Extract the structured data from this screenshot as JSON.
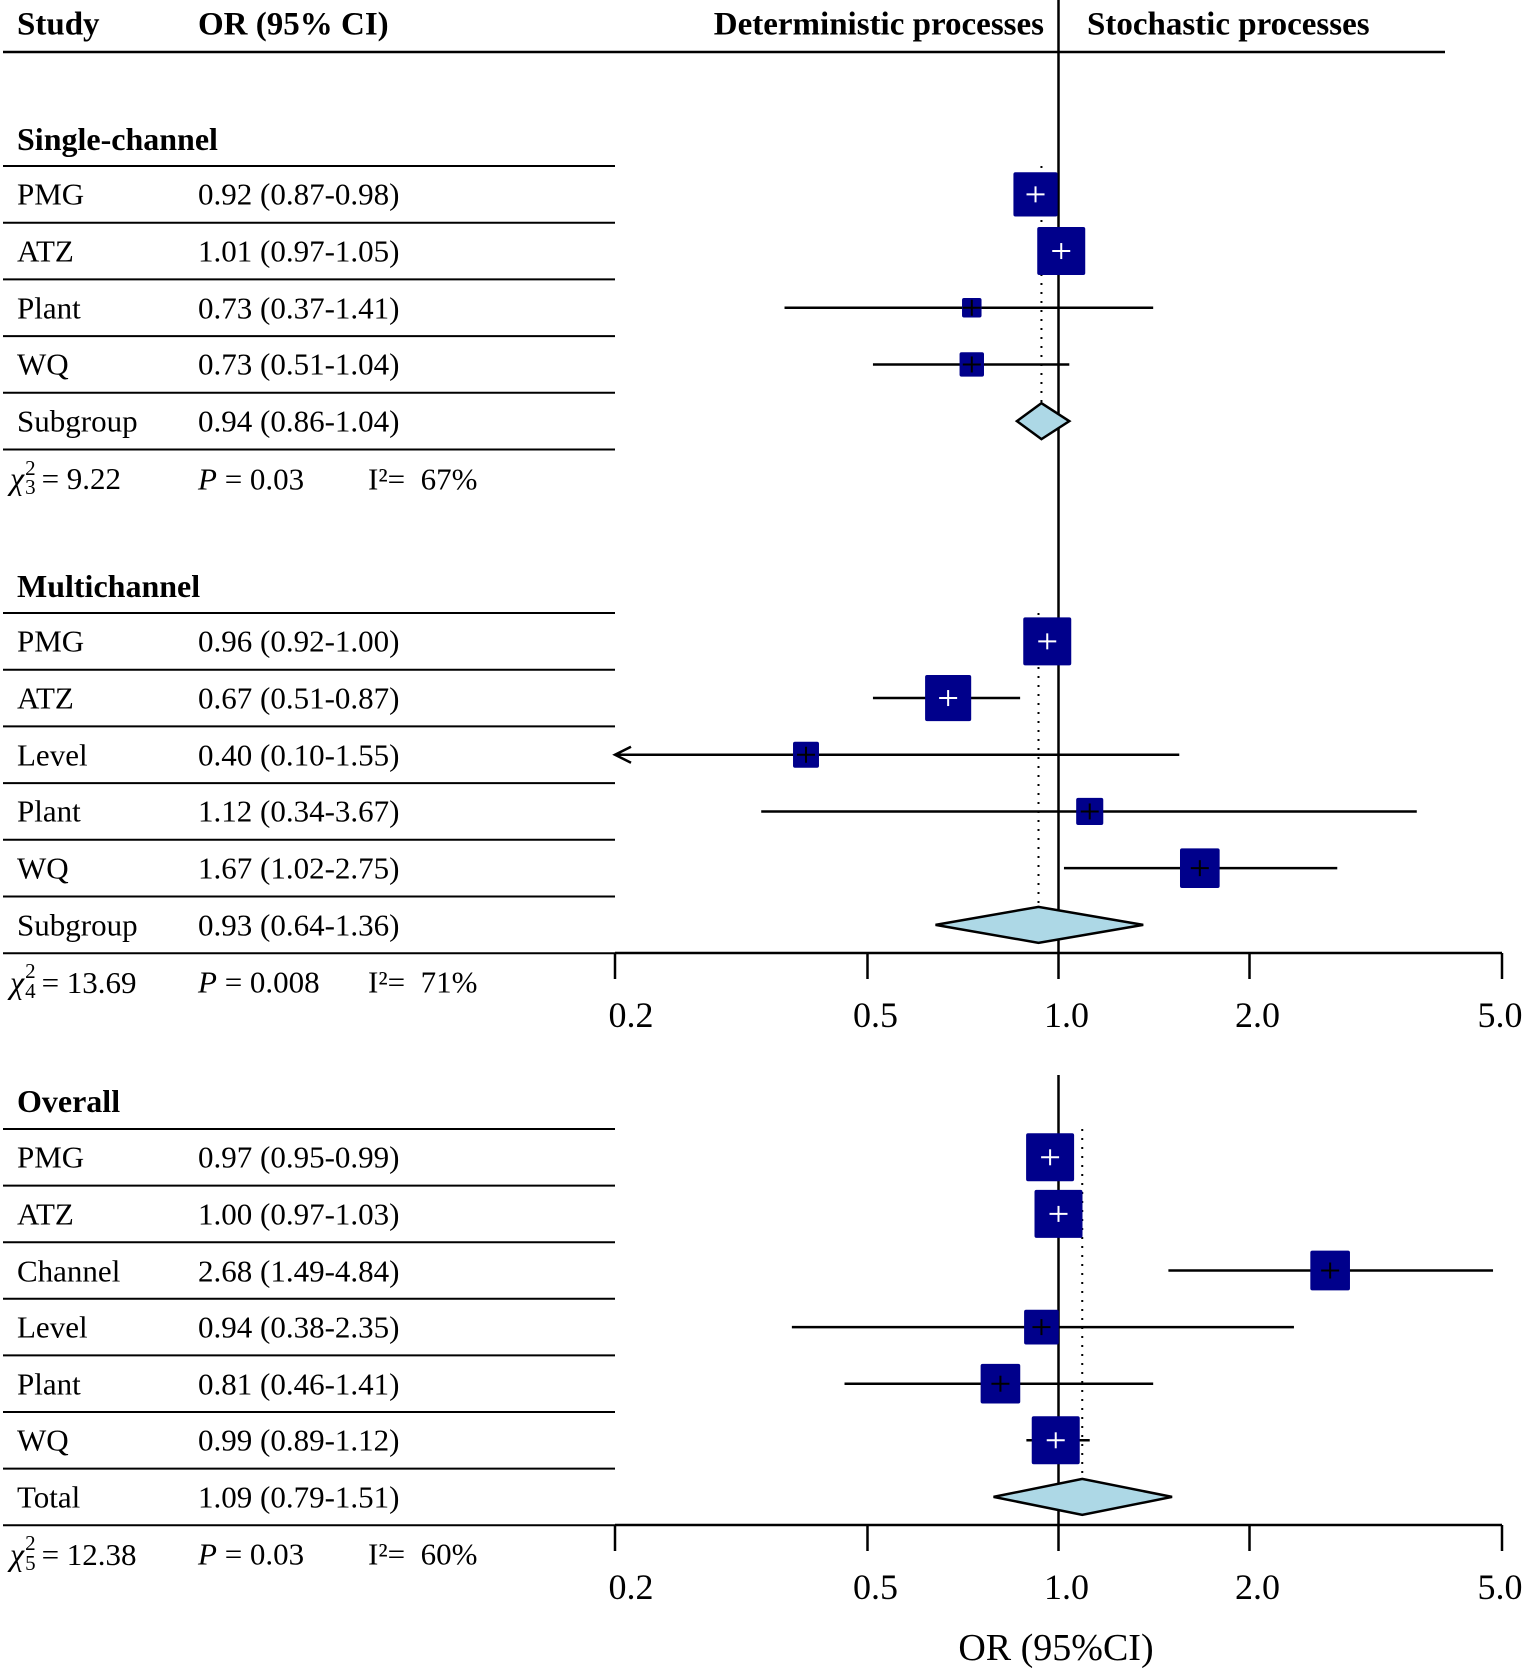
{
  "chart_data": {
    "type": "forest",
    "title": "",
    "xlabel": "OR (95%CI)",
    "xscale": "log",
    "xlim": [
      0.2,
      5.0
    ],
    "xticks": [
      "0.2",
      "0.5",
      "1.0",
      "2.0",
      "5.0"
    ],
    "xtick_values": [
      0.2,
      0.5,
      1.0,
      2.0,
      5.0
    ],
    "reference_line": 1.0,
    "header": {
      "study": "Study",
      "or": "OR (95% CI)",
      "left_label": "Deterministic processes",
      "right_label": "Stochastic processes"
    },
    "groups": [
      {
        "name": "Single-channel",
        "rows": [
          {
            "study": "PMG",
            "label": "0.92 (0.87-0.98)",
            "or": 0.92,
            "lo": 0.87,
            "hi": 0.98,
            "weight": 0.9
          },
          {
            "study": "ATZ",
            "label": "1.01 (0.97-1.05)",
            "or": 1.01,
            "lo": 0.97,
            "hi": 1.05,
            "weight": 1.0
          },
          {
            "study": "Plant",
            "label": "0.73 (0.37-1.41)",
            "or": 0.73,
            "lo": 0.37,
            "hi": 1.41,
            "weight": 0.25
          },
          {
            "study": "WQ",
            "label": "0.73 (0.51-1.04)",
            "or": 0.73,
            "lo": 0.51,
            "hi": 1.04,
            "weight": 0.38
          }
        ],
        "summary": {
          "study": "Subgroup",
          "label": "0.94 (0.86-1.04)",
          "or": 0.94,
          "lo": 0.86,
          "hi": 1.04
        },
        "stats": {
          "chi_df": "3",
          "chi_value": "= 9.22",
          "p_label": "P",
          "p_value": "= 0.03",
          "i2_label": "I²=",
          "i2_value": "67%"
        }
      },
      {
        "name": "Multichannel",
        "rows": [
          {
            "study": "PMG",
            "label": "0.96 (0.92-1.00)",
            "or": 0.96,
            "lo": 0.92,
            "hi": 1.0,
            "weight": 1.0
          },
          {
            "study": "ATZ",
            "label": "0.67 (0.51-0.87)",
            "or": 0.67,
            "lo": 0.51,
            "hi": 0.87,
            "weight": 0.95
          },
          {
            "study": "Level",
            "label": "0.40 (0.10-1.55)",
            "or": 0.4,
            "lo": 0.1,
            "hi": 1.55,
            "weight": 0.42
          },
          {
            "study": "Plant",
            "label": "1.12 (0.34-3.67)",
            "or": 1.12,
            "lo": 0.34,
            "hi": 3.67,
            "weight": 0.45
          },
          {
            "study": "WQ",
            "label": "1.67 (1.02-2.75)",
            "or": 1.67,
            "lo": 1.02,
            "hi": 2.75,
            "weight": 0.78
          }
        ],
        "summary": {
          "study": "Subgroup",
          "label": "0.93 (0.64-1.36)",
          "or": 0.93,
          "lo": 0.64,
          "hi": 1.36
        },
        "stats": {
          "chi_df": "4",
          "chi_value": "= 13.69",
          "p_label": "P",
          "p_value": "= 0.008",
          "i2_label": "I²=",
          "i2_value": "71%"
        }
      },
      {
        "name": "Overall",
        "rows": [
          {
            "study": "PMG",
            "label": "0.97 (0.95-0.99)",
            "or": 0.97,
            "lo": 0.95,
            "hi": 0.99,
            "weight": 1.0
          },
          {
            "study": "ATZ",
            "label": "1.00 (0.97-1.03)",
            "or": 1.0,
            "lo": 0.97,
            "hi": 1.03,
            "weight": 1.0
          },
          {
            "study": "Channel",
            "label": "2.68 (1.49-4.84)",
            "or": 2.68,
            "lo": 1.49,
            "hi": 4.84,
            "weight": 0.78
          },
          {
            "study": "Level",
            "label": "0.94 (0.38-2.35)",
            "or": 0.94,
            "lo": 0.38,
            "hi": 2.35,
            "weight": 0.65
          },
          {
            "study": "Plant",
            "label": "0.81 (0.46-1.41)",
            "or": 0.81,
            "lo": 0.46,
            "hi": 1.41,
            "weight": 0.78
          },
          {
            "study": "WQ",
            "label": "0.99 (0.89-1.12)",
            "or": 0.99,
            "lo": 0.89,
            "hi": 1.12,
            "weight": 1.0
          }
        ],
        "summary": {
          "study": "Total",
          "label": "1.09 (0.79-1.51)",
          "or": 1.09,
          "lo": 0.79,
          "hi": 1.51
        },
        "stats": {
          "chi_df": "5",
          "chi_value": "= 12.38",
          "p_label": "P",
          "p_value": "= 0.03",
          "i2_label": "I²=",
          "i2_value": "60%"
        }
      }
    ],
    "colors": {
      "box": "#00008b",
      "diamond": "#add8e6",
      "line": "#000000"
    }
  }
}
